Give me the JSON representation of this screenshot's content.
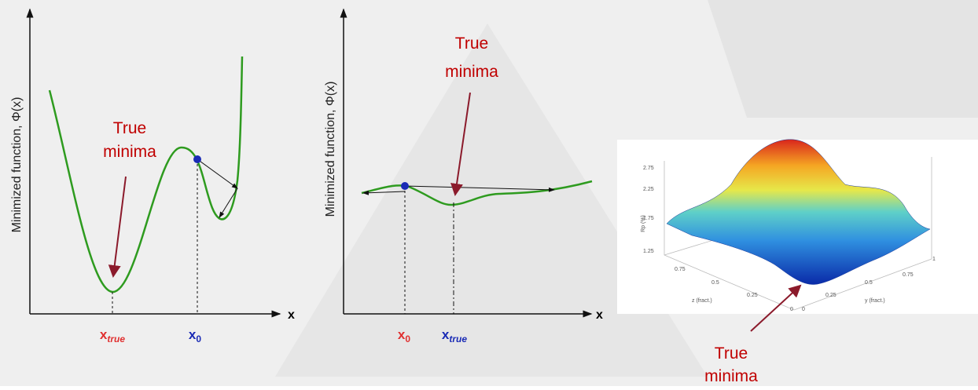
{
  "panels": [
    {
      "y_axis_label": "Minimized function, Φ(x)",
      "x_axis_label": "x",
      "markers": [
        {
          "base": "x",
          "subscript": "true"
        },
        {
          "base": "x",
          "subscript": "0"
        }
      ],
      "annotation": [
        "True",
        "minima"
      ]
    },
    {
      "y_axis_label": "Minimized function, Φ(x)",
      "x_axis_label": "x",
      "markers": [
        {
          "base": "x",
          "subscript": "0"
        },
        {
          "base": "x",
          "subscript": "true"
        }
      ],
      "annotation": [
        "True",
        "minima"
      ]
    }
  ],
  "surface": {
    "z_label": "Rp (%)",
    "z_ticks": [
      "2.75",
      "2.25",
      "1.75",
      "1.25"
    ],
    "left_ticks": [
      "0.75",
      "0.5",
      "0.25",
      "0"
    ],
    "left_label": "z (fract.)",
    "right_ticks": [
      "1",
      "0.75",
      "0.5",
      "0.25",
      "0"
    ],
    "right_label": "y (fract.)",
    "annotation": [
      "True",
      "minima"
    ]
  }
}
